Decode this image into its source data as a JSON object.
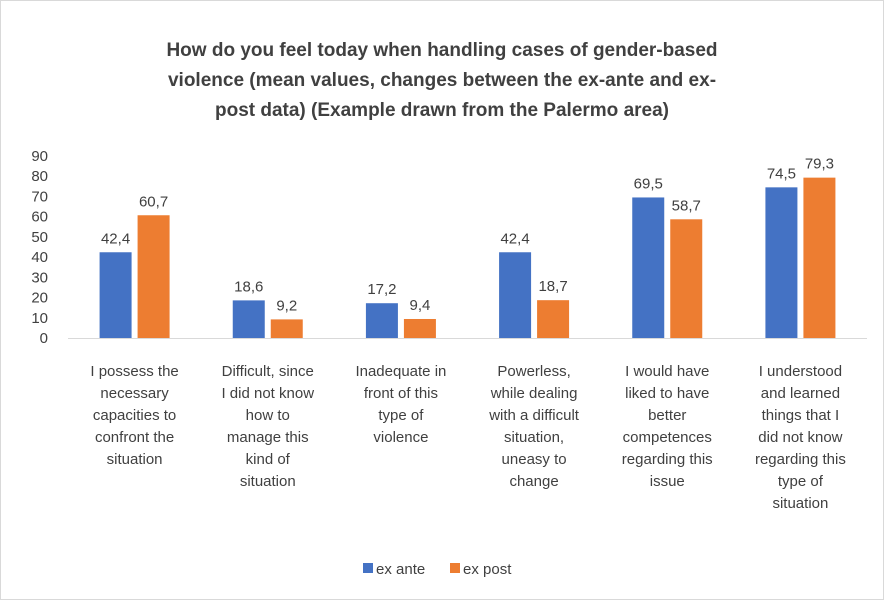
{
  "chart_data": {
    "type": "bar",
    "title_lines": [
      "How do you feel today when handling cases of gender-based",
      "violence (mean values, changes between the ex-ante and ex-",
      "post data) (Example drawn from the Palermo area)"
    ],
    "categories": [
      [
        "I possess the",
        "necessary",
        "capacities to",
        "confront the",
        "situation"
      ],
      [
        "Difficult, since",
        "I did not know",
        "how to",
        "manage this",
        "kind of",
        "situation"
      ],
      [
        "Inadequate in",
        "front of this",
        "type of",
        "violence"
      ],
      [
        "Powerless,",
        "while dealing",
        "with a difficult",
        "situation,",
        "uneasy to",
        "change"
      ],
      [
        "I would have",
        "liked to have",
        "better",
        "competences",
        "regarding this",
        "issue"
      ],
      [
        "I understood",
        "and learned",
        "things that I",
        "did not know",
        "regarding this",
        "type of",
        "situation"
      ]
    ],
    "series": [
      {
        "name": "ex ante",
        "color": "#4472C4",
        "values": [
          42.4,
          18.6,
          17.2,
          42.4,
          69.5,
          74.5
        ],
        "labels": [
          "42,4",
          "18,6",
          "17,2",
          "42,4",
          "69,5",
          "74,5"
        ]
      },
      {
        "name": "ex post",
        "color": "#ED7D31",
        "values": [
          60.7,
          9.2,
          9.4,
          18.7,
          58.7,
          79.3
        ],
        "labels": [
          "60,7",
          "9,2",
          "9,4",
          "18,7",
          "58,7",
          "79,3"
        ]
      }
    ],
    "ylim": [
      0,
      90
    ],
    "yticks": [
      "0",
      "10",
      "20",
      "30",
      "40",
      "50",
      "60",
      "70",
      "80",
      "90"
    ],
    "legend_position": "bottom",
    "grid": false
  }
}
